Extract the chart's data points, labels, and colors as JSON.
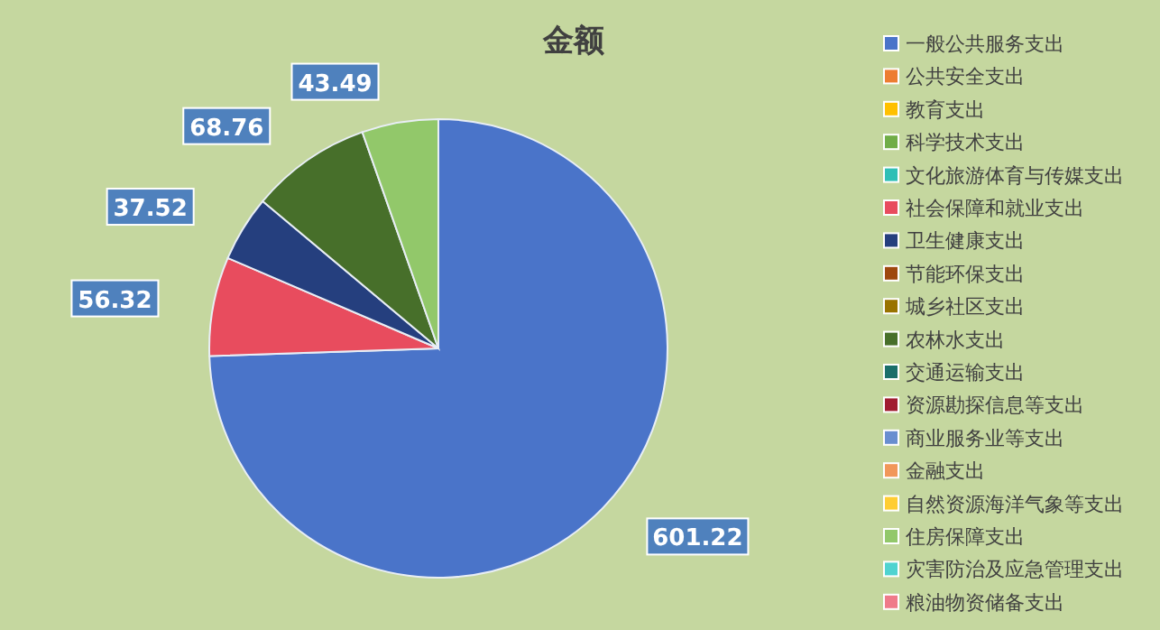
{
  "chart_data": {
    "type": "pie",
    "title": "金额",
    "categories": [
      "一般公共服务支出",
      "公共安全支出",
      "教育支出",
      "科学技术支出",
      "文化旅游体育与传媒支出",
      "社会保障和就业支出",
      "卫生健康支出",
      "节能环保支出",
      "城乡社区支出",
      "农林水支出",
      "交通运输支出",
      "资源勘探信息等支出",
      "商业服务业等支出",
      "金融支出",
      "自然资源海洋气象等支出",
      "住房保障支出",
      "灾害防治及应急管理支出",
      "粮油物资储备支出"
    ],
    "values": [
      601.22,
      0,
      0,
      0,
      0,
      56.32,
      37.52,
      0,
      0,
      68.76,
      0,
      0,
      0,
      0,
      0,
      43.49,
      0,
      0
    ],
    "colors": [
      "#4a74c9",
      "#ed7d31",
      "#ffc000",
      "#70ad47",
      "#2fbfb6",
      "#e84c5e",
      "#253f7e",
      "#9e480e",
      "#997300",
      "#476f2a",
      "#1a6e6a",
      "#a01c30",
      "#698ed0",
      "#f1975a",
      "#ffcd33",
      "#92c86a",
      "#4fd3d0",
      "#ef7a8a"
    ],
    "data_labels": true,
    "legend": "right"
  }
}
